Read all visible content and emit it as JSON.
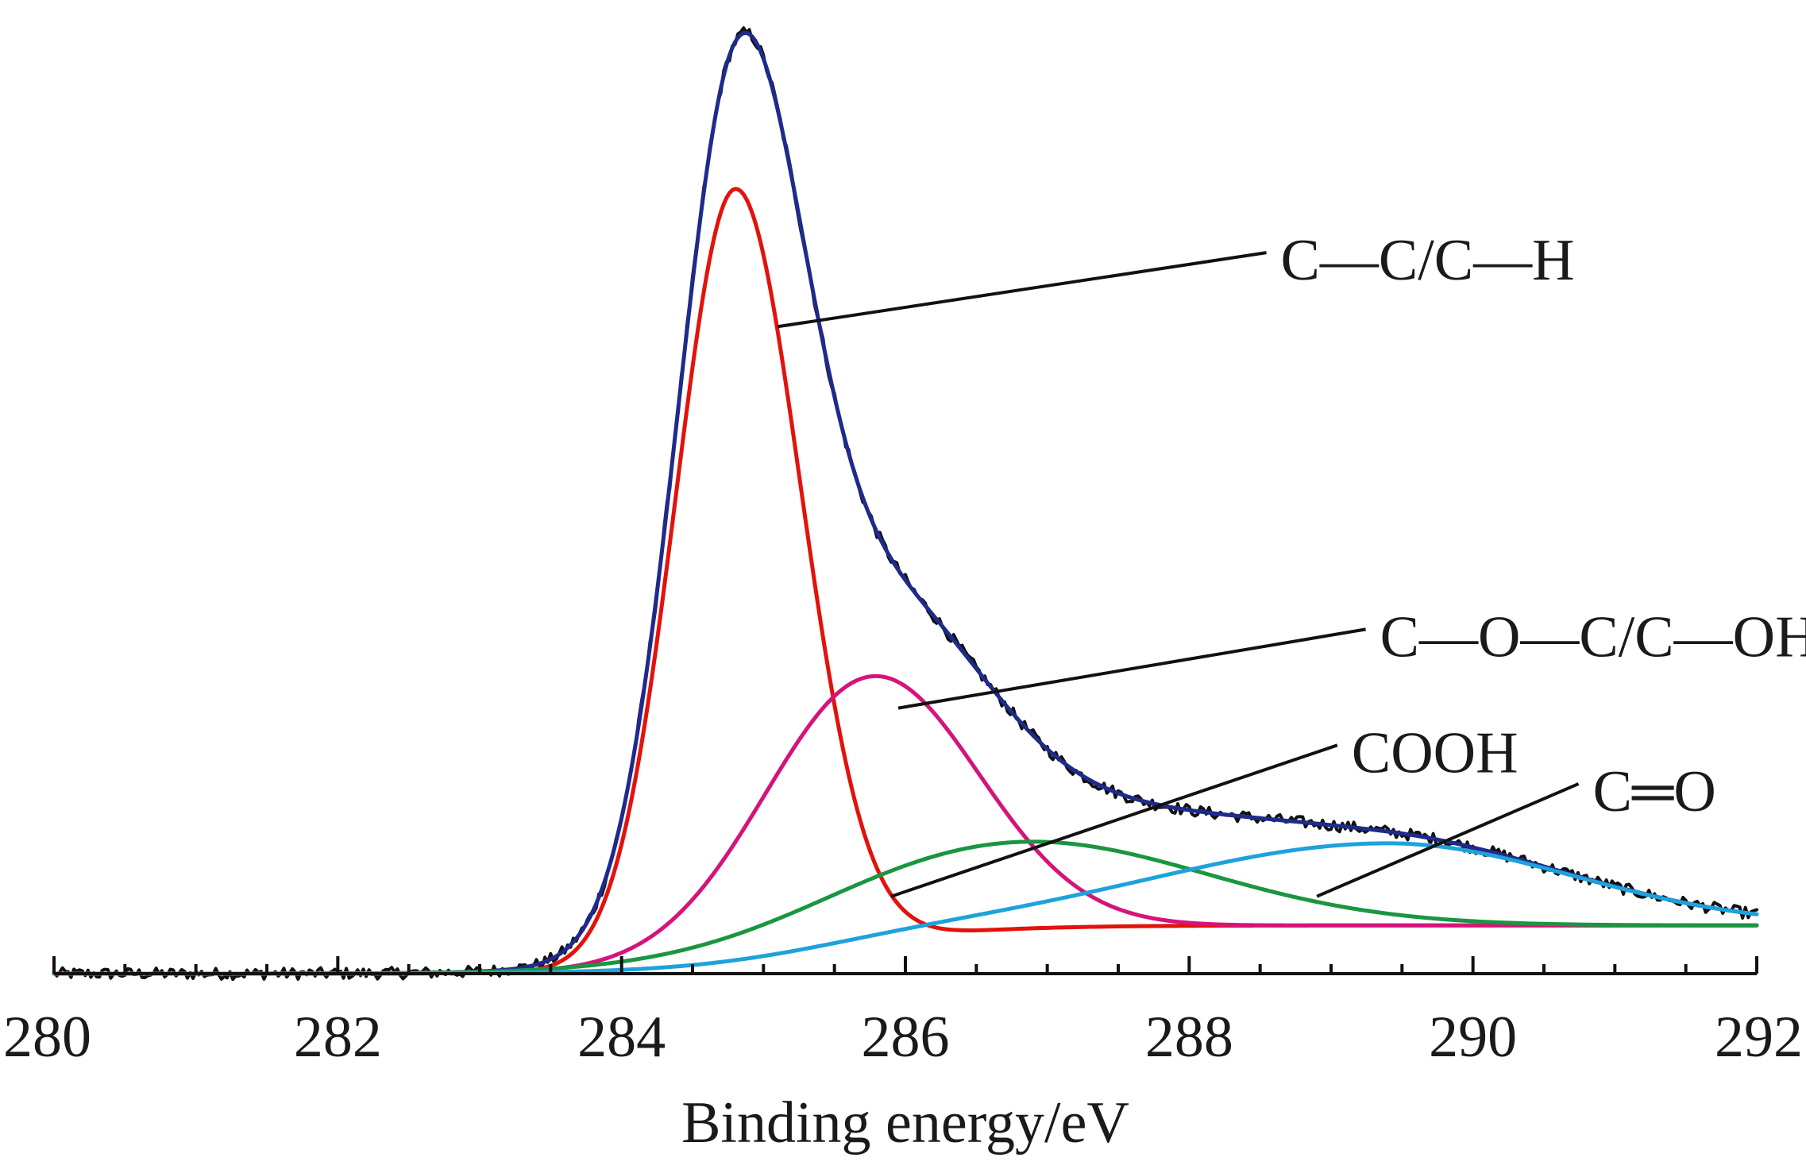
{
  "chart_data": {
    "type": "line",
    "title": "",
    "xlabel": "Binding energy/eV",
    "ylabel": "",
    "xlim": [
      280,
      292
    ],
    "ylim": [
      0,
      1.0
    ],
    "x_ticks": [
      280,
      282,
      284,
      286,
      288,
      290,
      292
    ],
    "grid": false,
    "legend": "none",
    "background": 0.05,
    "series": [
      {
        "peak": "C—C/C—H",
        "center": 284.8,
        "height": 0.8,
        "sigma_left": 0.42,
        "sigma_right": 0.46,
        "color": "#e3120b"
      },
      {
        "peak": "C—O—C/C—OH",
        "center": 285.75,
        "height": 0.275,
        "sigma_left": 0.75,
        "sigma_right": 0.75,
        "color": "#d6137a"
      },
      {
        "peak": "COOH",
        "center": 286.8,
        "height": 0.09,
        "sigma_left": 1.3,
        "sigma_right": 1.3,
        "color": "#1a9641"
      },
      {
        "peak": "C═O",
        "center": 289.4,
        "height": 0.085,
        "sigma_left": 1.6,
        "sigma_right": 1.3,
        "color": "#1ea2dc"
      },
      {
        "peak": "envelope",
        "color": "#1f2a8c"
      },
      {
        "peak": "raw",
        "color": "#111111"
      }
    ],
    "annotations": [
      {
        "label": "C—C/C—H",
        "x": 285.1,
        "y": 0.67,
        "label_x": 288.6,
        "label_y": 0.74
      },
      {
        "label": "C—O—C/C—OH",
        "x": 285.95,
        "y": 0.275,
        "label_x": 289.3,
        "label_y": 0.35
      },
      {
        "label": "COOH",
        "x": 285.9,
        "y": 0.08,
        "label_x": 289.1,
        "label_y": 0.23
      },
      {
        "label": "C═O",
        "x": 288.9,
        "y": 0.08,
        "label_x": 290.8,
        "label_y": 0.19
      }
    ]
  }
}
